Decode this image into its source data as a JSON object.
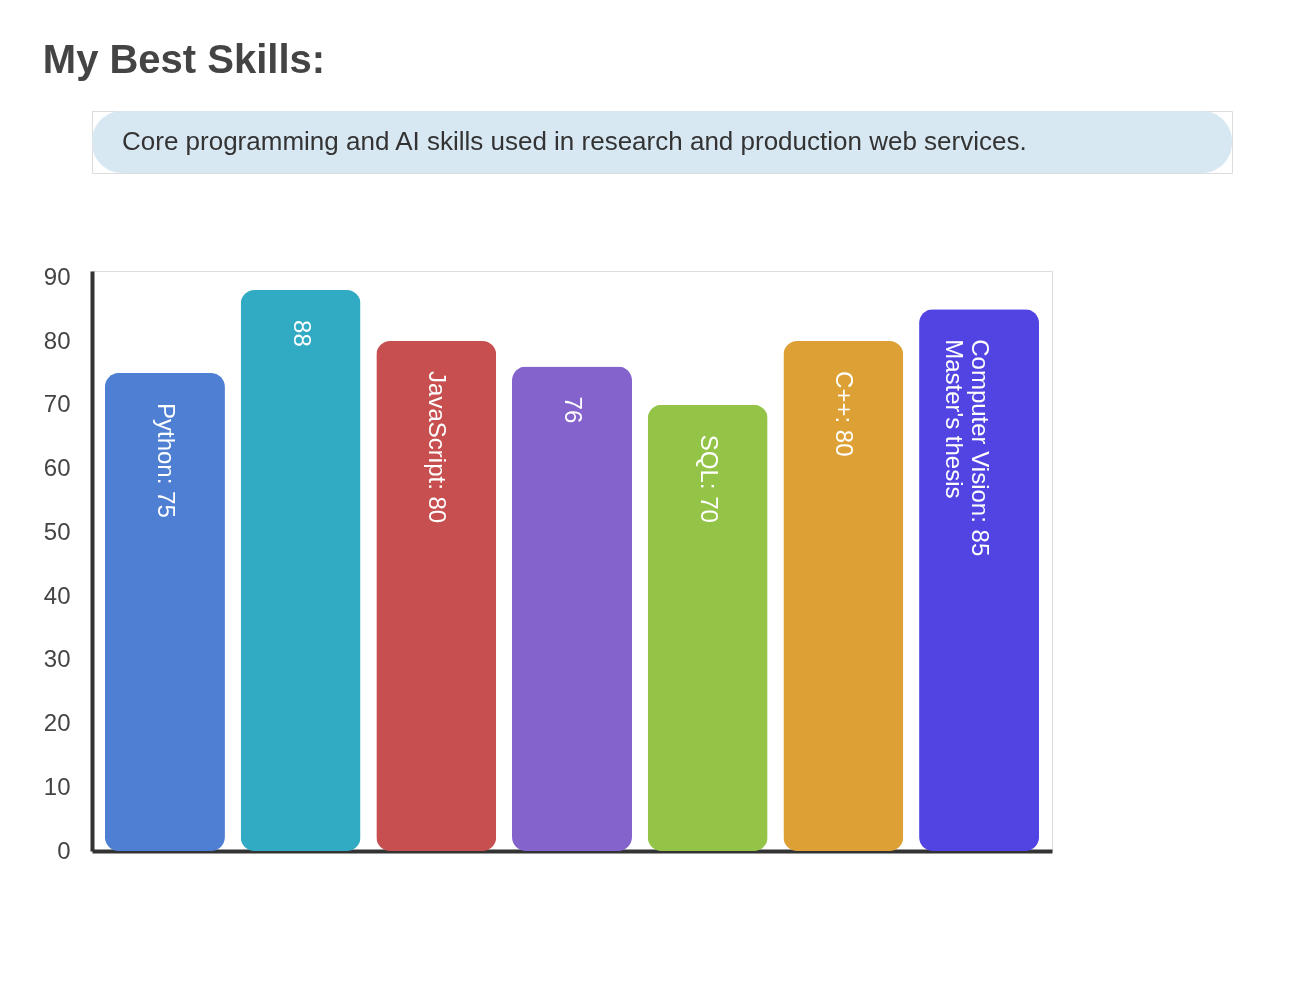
{
  "chart_data": {
    "type": "bar",
    "title": "My Best Skills:",
    "subtitle": "Core programming and AI skills used in research and production web services.",
    "categories": [
      null,
      null,
      null,
      null,
      null,
      null,
      null
    ],
    "values": [
      75,
      88,
      80,
      76,
      70,
      80,
      85
    ],
    "colors": [
      "#4f7fd3",
      "#31aac4",
      "#c84f4f",
      "#8463cc",
      "#93c447",
      "#dda035",
      "#5144e2"
    ],
    "value_labels": [
      "Python: 75",
      "88",
      "JavaScript: 80",
      "76",
      "SQL: 70",
      "C++: 80",
      "Computer Vision: 85\nMaster's thesis"
    ],
    "ylim": [
      0,
      91
    ],
    "yticks": [
      0,
      10,
      20,
      30,
      40,
      50,
      60,
      70,
      80,
      90
    ],
    "grid": false,
    "tick_labels": "y"
  }
}
